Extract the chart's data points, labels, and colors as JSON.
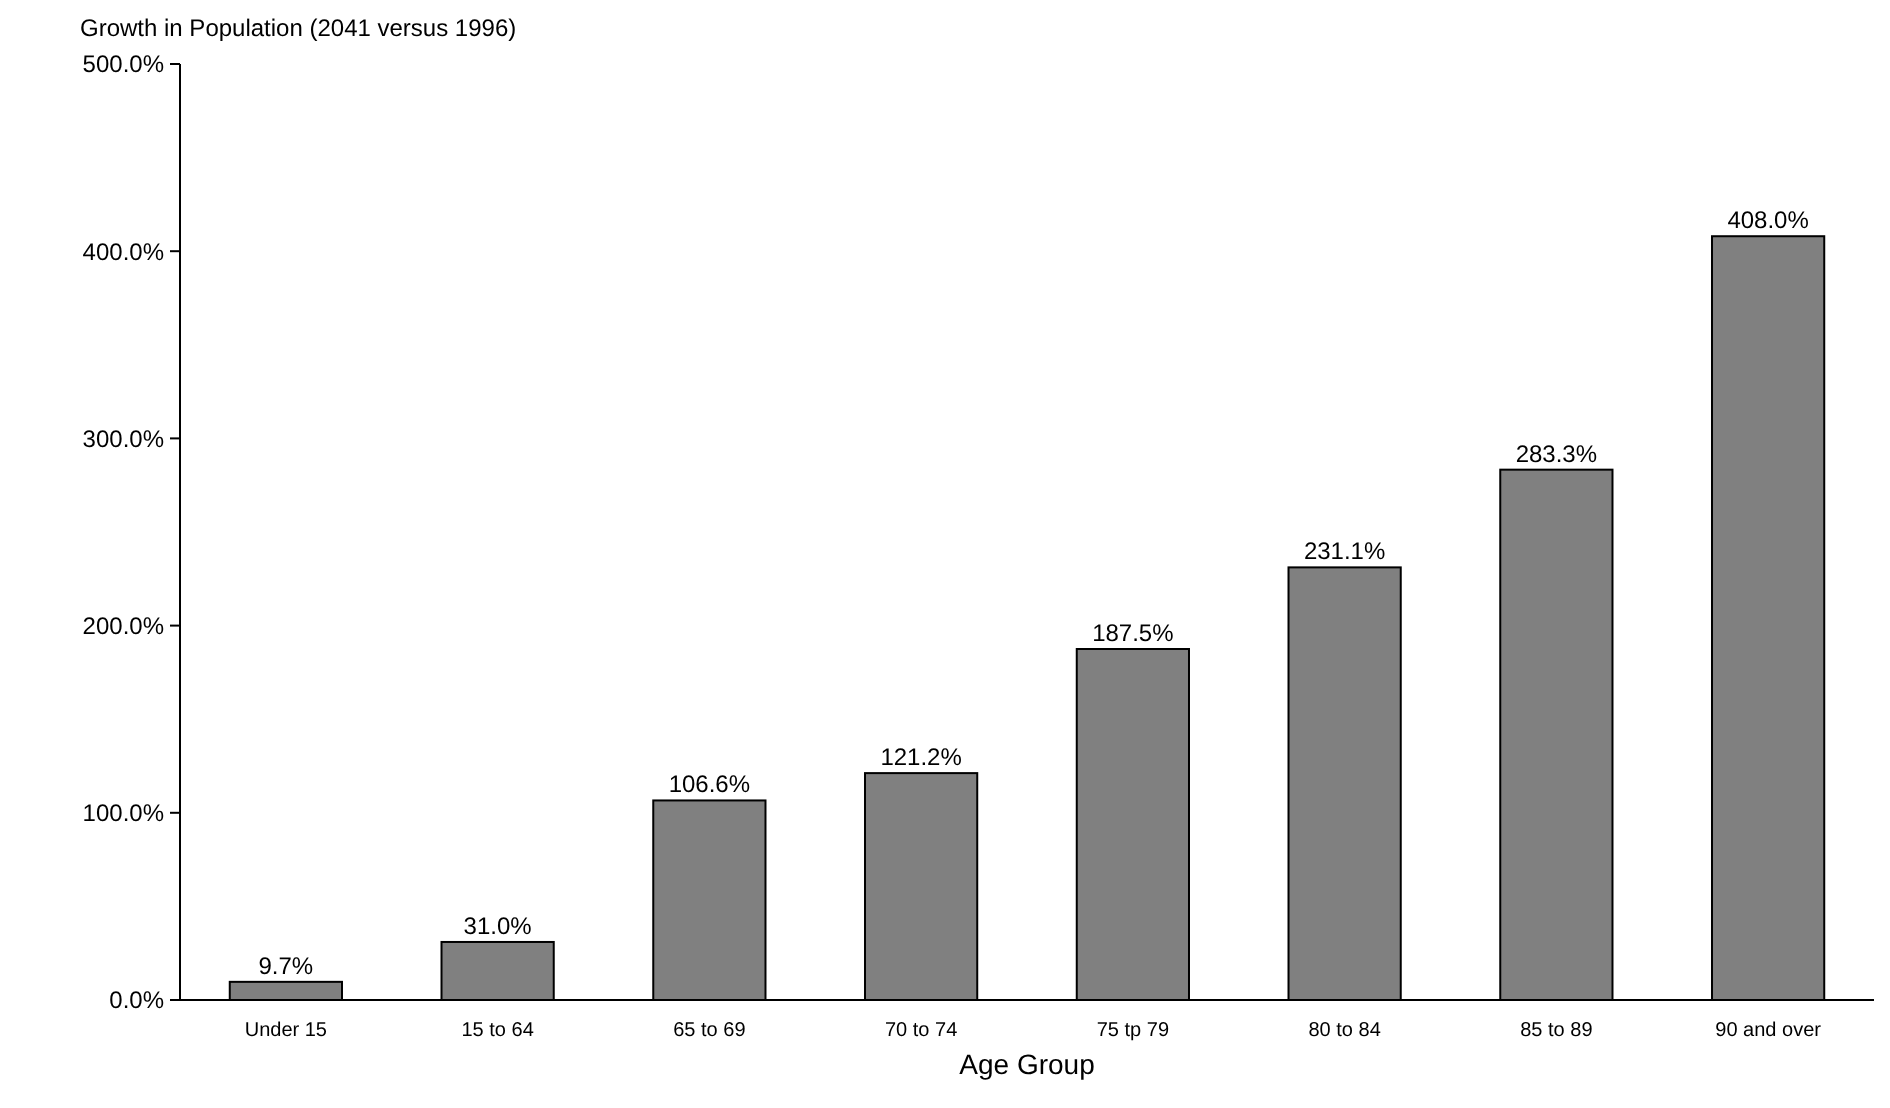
{
  "chart_data": {
    "type": "bar",
    "title": "Growth in Population (2041 versus 1996)",
    "xlabel": "Age Group",
    "categories": [
      "Under 15",
      "15 to 64",
      "65 to 69",
      "70 to 74",
      "75 tp 79",
      "80 to 84",
      "85 to 89",
      "90 and over"
    ],
    "values": [
      9.7,
      31.0,
      106.6,
      121.2,
      187.5,
      231.1,
      283.3,
      408.0
    ],
    "value_labels": [
      "9.7%",
      "31.0%",
      "106.6%",
      "121.2%",
      "187.5%",
      "231.1%",
      "283.3%",
      "408.0%"
    ],
    "color": "#808080",
    "ylim": [
      0,
      500
    ],
    "yticks": [
      {
        "value": 0,
        "label": "0.0%"
      },
      {
        "value": 100,
        "label": "100.0%"
      },
      {
        "value": 200,
        "label": "200.0%"
      },
      {
        "value": 300,
        "label": "300.0%"
      },
      {
        "value": 400,
        "label": "400.0%"
      },
      {
        "value": 500,
        "label": "500.0%"
      }
    ],
    "grid": false
  }
}
